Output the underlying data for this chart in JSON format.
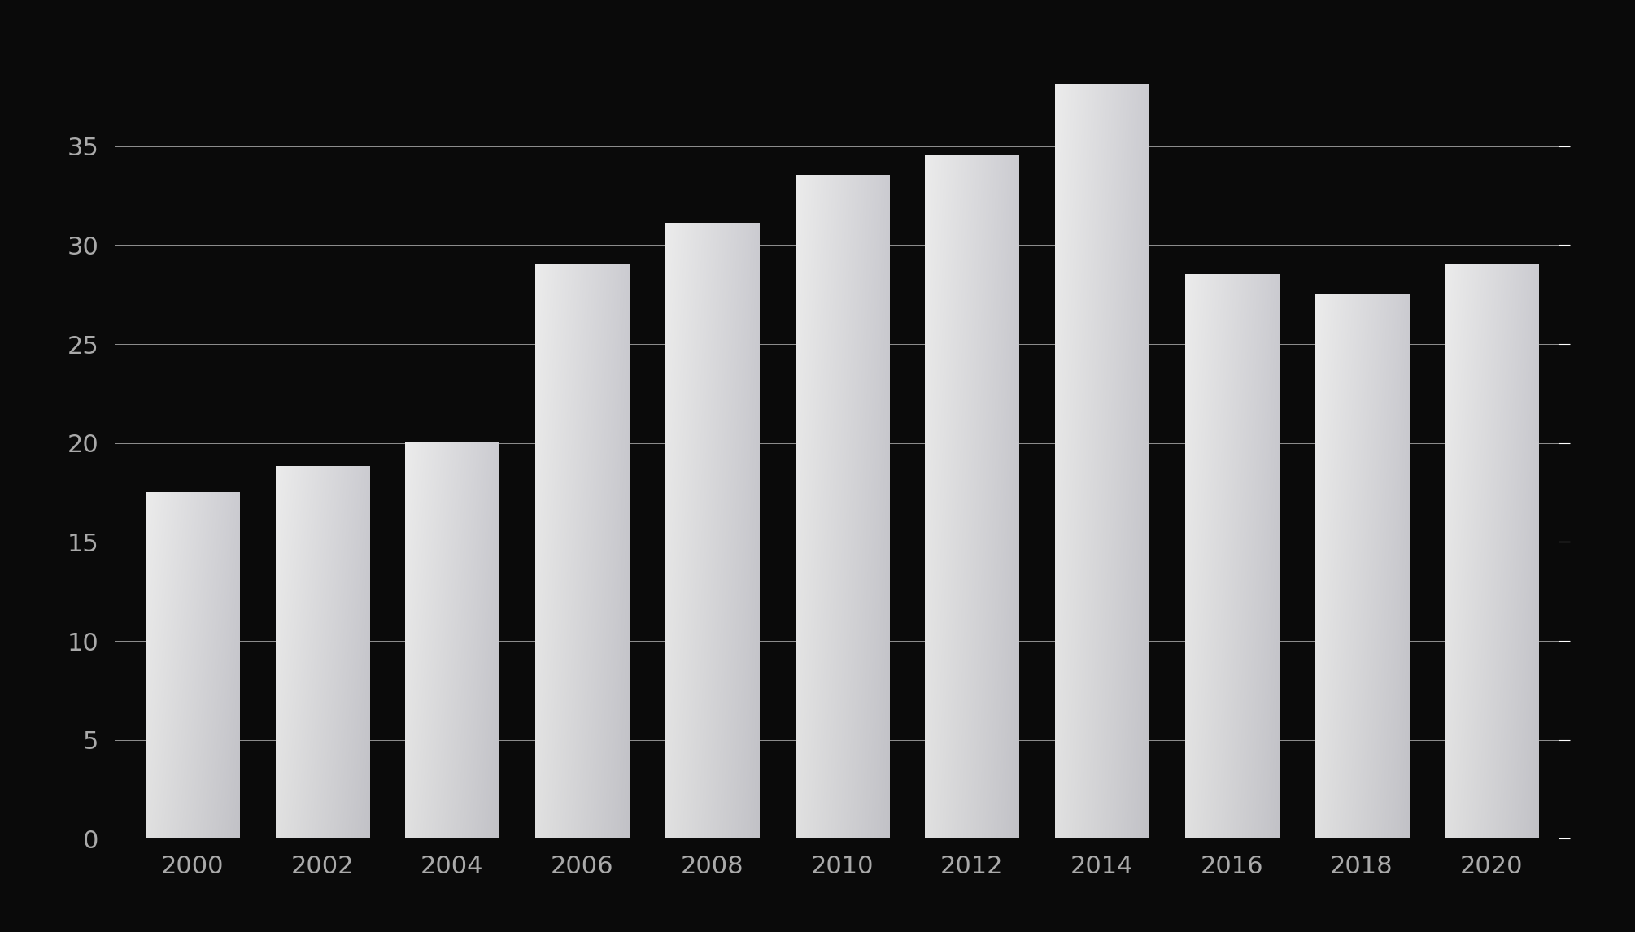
{
  "categories": [
    "2000",
    "2002",
    "2004",
    "2006",
    "2008",
    "2010",
    "2012",
    "2014",
    "2016",
    "2018",
    "2020"
  ],
  "values": [
    17.5,
    18.8,
    20.0,
    29.0,
    31.1,
    33.5,
    34.5,
    38.1,
    28.5,
    27.5,
    29.0
  ],
  "bar_color_light": "#d8d8d8",
  "bar_color_dark": "#909090",
  "background_color": "#0a0a0a",
  "grid_color": "#ffffff",
  "tick_color": "#aaaaaa",
  "yticks": [
    0,
    5,
    10,
    15,
    20,
    25,
    30,
    35
  ],
  "ylim": [
    0,
    40.5
  ],
  "bar_width": 0.72,
  "figsize": [
    20.1,
    11.46
  ],
  "dpi": 100
}
